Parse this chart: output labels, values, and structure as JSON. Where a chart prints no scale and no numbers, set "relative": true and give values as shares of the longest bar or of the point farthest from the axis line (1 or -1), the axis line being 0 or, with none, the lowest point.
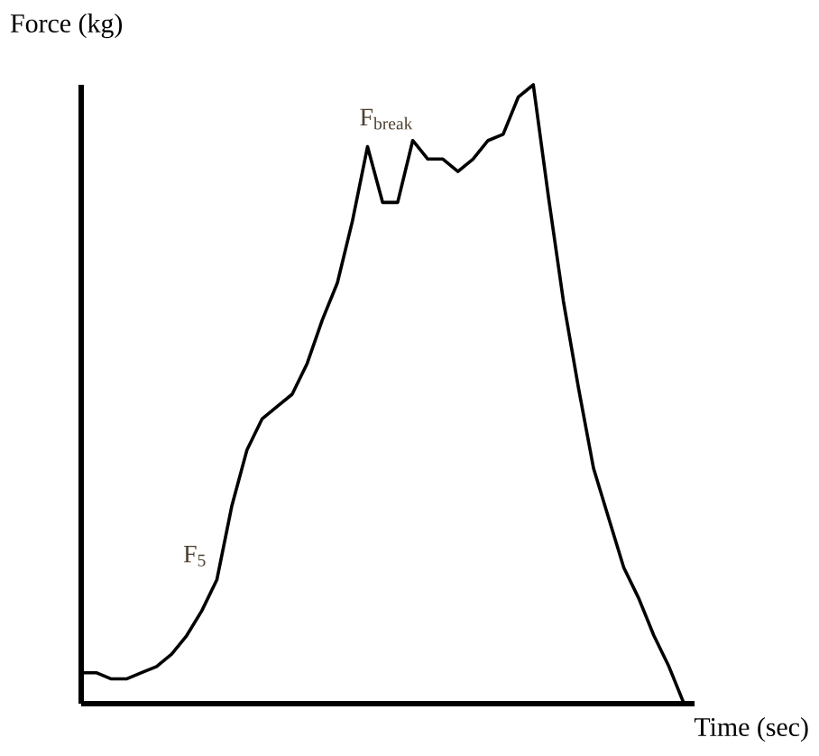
{
  "chart_data": {
    "type": "line",
    "relative": true,
    "xlabel": "Time (sec)",
    "ylabel": "Force (kg)",
    "categories": [
      null,
      null,
      null,
      null,
      null,
      null,
      null,
      null,
      null,
      null,
      null,
      null,
      null,
      null,
      null,
      null,
      null,
      null,
      null,
      null,
      null,
      null,
      null,
      null,
      null,
      null,
      null,
      null,
      null,
      null,
      null,
      null,
      null,
      null,
      null,
      null,
      null,
      null,
      null,
      null,
      null
    ],
    "values": [
      0.05,
      0.05,
      0.04,
      0.04,
      0.05,
      0.06,
      0.08,
      0.11,
      0.15,
      0.2,
      0.32,
      0.41,
      0.46,
      0.48,
      0.5,
      0.55,
      0.62,
      0.68,
      0.78,
      0.9,
      0.81,
      0.81,
      0.91,
      0.88,
      0.88,
      0.86,
      0.88,
      0.91,
      0.92,
      0.98,
      1,
      0.82,
      0.65,
      0.51,
      0.38,
      0.3,
      0.22,
      0.17,
      0.11,
      0.06,
      0
    ],
    "color": "#000000",
    "annotations": [
      "F$_{5}$",
      "F$_{break}$"
    ]
  }
}
